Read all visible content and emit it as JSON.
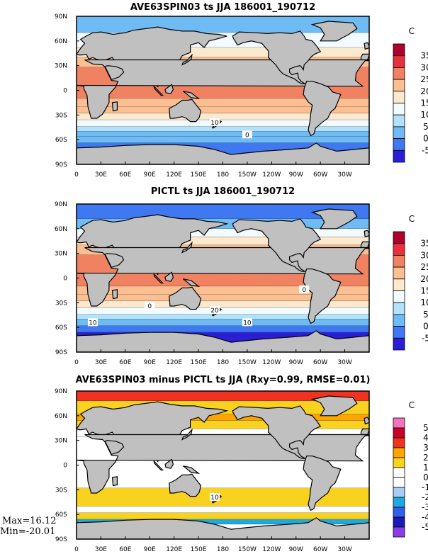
{
  "figure": {
    "stats": {
      "max_label": "Max=16.12",
      "min_label": "Min=-20.01"
    }
  },
  "chart_data": [
    {
      "type": "heatmap",
      "title": "AVE63SPIN03 ts JJA 186001_190712",
      "xlabel": "",
      "ylabel": "",
      "x_ticks": [
        "0",
        "30E",
        "60E",
        "90E",
        "120E",
        "150E",
        "180",
        "150W",
        "120W",
        "90W",
        "60W",
        "30W"
      ],
      "y_ticks": [
        "90N",
        "60N",
        "30N",
        "0",
        "30S",
        "60S",
        "90S"
      ],
      "xlim": [
        0,
        360
      ],
      "ylim": [
        -90,
        90
      ],
      "colorbar": {
        "unit": "C",
        "levels": [
          "35",
          "30",
          "25",
          "20",
          "15",
          "10",
          "5",
          "0",
          "-5"
        ],
        "colors": [
          "#b0002d",
          "#e8303a",
          "#f08262",
          "#fbbf92",
          "#fde9cd",
          "#f2fbff",
          "#b3e2fc",
          "#6fbcf5",
          "#3f78f0",
          "#2a1fd4"
        ]
      },
      "contour_labels": [
        "10",
        "0"
      ],
      "zonal_bands": [
        {
          "lat_from": 90,
          "lat_to": 70,
          "value": 0
        },
        {
          "lat_from": 70,
          "lat_to": 52,
          "value": 10
        },
        {
          "lat_from": 52,
          "lat_to": 40,
          "value": 17
        },
        {
          "lat_from": 40,
          "lat_to": 28,
          "value": 22
        },
        {
          "lat_from": 28,
          "lat_to": -10,
          "value": 27
        },
        {
          "lat_from": -10,
          "lat_to": -20,
          "value": 24
        },
        {
          "lat_from": -20,
          "lat_to": -28,
          "value": 21
        },
        {
          "lat_from": -28,
          "lat_to": -36,
          "value": 17
        },
        {
          "lat_from": -36,
          "lat_to": -44,
          "value": 12
        },
        {
          "lat_from": -44,
          "lat_to": -50,
          "value": 7
        },
        {
          "lat_from": -50,
          "lat_to": -56,
          "value": 3
        },
        {
          "lat_from": -56,
          "lat_to": -64,
          "value": 0
        },
        {
          "lat_from": -64,
          "lat_to": -90,
          "value": -3
        }
      ]
    },
    {
      "type": "heatmap",
      "title": "PICTL ts JJA 186001_190712",
      "xlabel": "",
      "ylabel": "",
      "x_ticks": [
        "0",
        "30E",
        "60E",
        "90E",
        "120E",
        "150E",
        "180",
        "150W",
        "120W",
        "90W",
        "60W",
        "30W"
      ],
      "y_ticks": [
        "90N",
        "60N",
        "30N",
        "0",
        "30S",
        "60S",
        "90S"
      ],
      "xlim": [
        0,
        360
      ],
      "ylim": [
        -90,
        90
      ],
      "colorbar": {
        "unit": "C",
        "levels": [
          "35",
          "30",
          "25",
          "20",
          "15",
          "10",
          "5",
          "0",
          "-5"
        ],
        "colors": [
          "#b0002d",
          "#e8303a",
          "#f08262",
          "#fbbf92",
          "#fde9cd",
          "#f2fbff",
          "#b3e2fc",
          "#6fbcf5",
          "#3f78f0",
          "#2a1fd4"
        ]
      },
      "contour_labels": [
        "20",
        "10",
        "10",
        "0",
        "0"
      ],
      "zonal_bands": [
        {
          "lat_from": 90,
          "lat_to": 72,
          "value": -3
        },
        {
          "lat_from": 72,
          "lat_to": 60,
          "value": 3
        },
        {
          "lat_from": 60,
          "lat_to": 50,
          "value": 10
        },
        {
          "lat_from": 50,
          "lat_to": 40,
          "value": 17
        },
        {
          "lat_from": 40,
          "lat_to": 28,
          "value": 22
        },
        {
          "lat_from": 28,
          "lat_to": -10,
          "value": 27
        },
        {
          "lat_from": -10,
          "lat_to": -20,
          "value": 24
        },
        {
          "lat_from": -20,
          "lat_to": -28,
          "value": 21
        },
        {
          "lat_from": -28,
          "lat_to": -36,
          "value": 17
        },
        {
          "lat_from": -36,
          "lat_to": -44,
          "value": 12
        },
        {
          "lat_from": -44,
          "lat_to": -50,
          "value": 7
        },
        {
          "lat_from": -50,
          "lat_to": -58,
          "value": 2
        },
        {
          "lat_from": -58,
          "lat_to": -66,
          "value": -2
        },
        {
          "lat_from": -66,
          "lat_to": -90,
          "value": -6
        }
      ]
    },
    {
      "type": "heatmap",
      "title": "AVE63SPIN03 minus PICTL ts JJA (Rxy=0.99, RMSE=0.01)",
      "xlabel": "",
      "ylabel": "",
      "x_ticks": [
        "0",
        "30E",
        "60E",
        "90E",
        "120E",
        "150E",
        "180",
        "150W",
        "120W",
        "90W",
        "60W",
        "30W"
      ],
      "y_ticks": [
        "90N",
        "60N",
        "30N",
        "0",
        "30S",
        "60S",
        "90S"
      ],
      "xlim": [
        0,
        360
      ],
      "ylim": [
        -90,
        90
      ],
      "colorbar": {
        "unit": "C",
        "levels": [
          "5",
          "4",
          "3",
          "2",
          "1",
          "0",
          "-1",
          "-2",
          "-3",
          "-4",
          "-5"
        ],
        "colors": [
          "#f472c0",
          "#c8002a",
          "#f0321e",
          "#ffa500",
          "#f8d21e",
          "#ffffff",
          "#ffffff",
          "#a8cdf5",
          "#1eaae0",
          "#3060e8",
          "#1a1ab8",
          "#8c3ce6"
        ]
      },
      "contour_labels": [
        "10"
      ],
      "zonal_bands": [
        {
          "lat_from": 90,
          "lat_to": 78,
          "value": 3
        },
        {
          "lat_from": 78,
          "lat_to": 62,
          "value": 1.5
        },
        {
          "lat_from": 62,
          "lat_to": 54,
          "value": 2.5
        },
        {
          "lat_from": 54,
          "lat_to": 44,
          "value": 1.5
        },
        {
          "lat_from": 44,
          "lat_to": 34,
          "value": 0.5
        },
        {
          "lat_from": 34,
          "lat_to": -28,
          "value": 0
        },
        {
          "lat_from": -28,
          "lat_to": -50,
          "value": 1.5
        },
        {
          "lat_from": -50,
          "lat_to": -58,
          "value": 0.5
        },
        {
          "lat_from": -58,
          "lat_to": -66,
          "value": 1.5
        },
        {
          "lat_from": -66,
          "lat_to": -72,
          "value": -3
        },
        {
          "lat_from": -72,
          "lat_to": -90,
          "value": 0
        }
      ]
    }
  ]
}
